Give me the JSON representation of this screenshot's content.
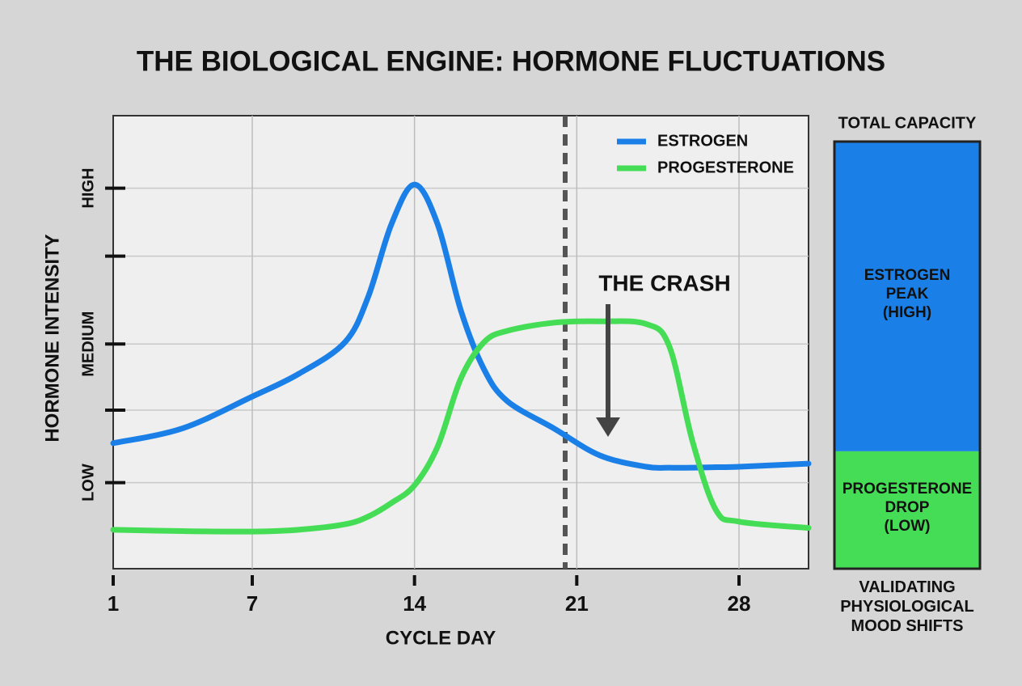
{
  "chart_data": [
    {
      "type": "line",
      "title": "THE BIOLOGICAL ENGINE: HORMONE FLUCTUATIONS",
      "x_label": "CYCLE DAY",
      "y_label": "HORMONE INTENSITY",
      "x": [
        1,
        4,
        7,
        9,
        11,
        12,
        13,
        14,
        15,
        16,
        17,
        18,
        20,
        22,
        24,
        25,
        26,
        27,
        28,
        31
      ],
      "series": [
        {
          "name": "ESTROGEN",
          "color": "#1a80e8",
          "values": [
            27.7,
            31,
            38,
            43,
            50,
            60,
            76,
            84.8,
            76,
            57,
            44,
            37,
            31,
            25,
            22.5,
            22.3,
            22.3,
            22.4,
            22.5,
            23.2
          ]
        },
        {
          "name": "PROGESTERONE",
          "color": "#45dd55",
          "values": [
            8.6,
            8.3,
            8.2,
            8.6,
            9.8,
            11.5,
            14.5,
            18.4,
            27,
            42,
            50,
            52.5,
            54.3,
            54.6,
            54,
            49,
            28,
            13,
            10.4,
            9
          ]
        }
      ],
      "xlim": [
        1,
        31
      ],
      "xticks": [
        1,
        7,
        14,
        21,
        28
      ],
      "ylim": [
        0,
        100
      ],
      "yticks": [
        {
          "value": 19,
          "label": "LOW"
        },
        {
          "value": 49.6,
          "label": "MEDIUM"
        },
        {
          "value": 84,
          "label": "HIGH"
        }
      ],
      "yminorticks": [
        35,
        69
      ],
      "grid": true,
      "legend": "upper right",
      "vline_x": 20.5,
      "annotation": "THE CRASH"
    },
    {
      "type": "stacked-bar",
      "title": "TOTAL CAPACITY",
      "ylim": [
        0,
        100
      ],
      "series": [
        {
          "name": "PROGESTERONE\nDROP\n(LOW)",
          "color": "#45dd55",
          "values": [
            27.5
          ]
        },
        {
          "name": "ESTROGEN\nPEAK\n(HIGH)",
          "color": "#1a80e8",
          "values": [
            72.5
          ]
        }
      ],
      "caption": "VALIDATING\nPHYSIOLOGICAL\nMOOD SHIFTS"
    }
  ]
}
